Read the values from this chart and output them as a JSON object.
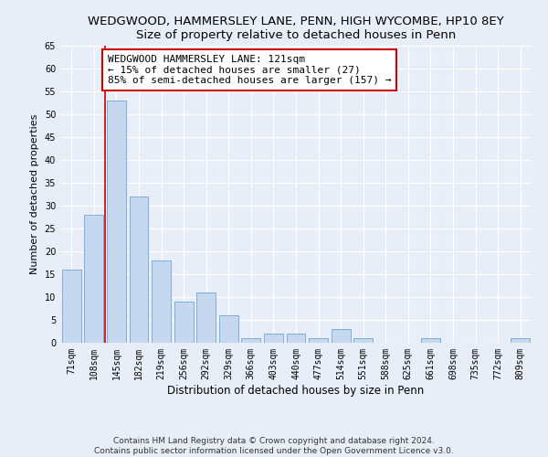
{
  "title": "WEDGWOOD, HAMMERSLEY LANE, PENN, HIGH WYCOMBE, HP10 8EY",
  "subtitle": "Size of property relative to detached houses in Penn",
  "xlabel": "Distribution of detached houses by size in Penn",
  "ylabel": "Number of detached properties",
  "categories": [
    "71sqm",
    "108sqm",
    "145sqm",
    "182sqm",
    "219sqm",
    "256sqm",
    "292sqm",
    "329sqm",
    "366sqm",
    "403sqm",
    "440sqm",
    "477sqm",
    "514sqm",
    "551sqm",
    "588sqm",
    "625sqm",
    "661sqm",
    "698sqm",
    "735sqm",
    "772sqm",
    "809sqm"
  ],
  "values": [
    16,
    28,
    53,
    32,
    18,
    9,
    11,
    6,
    1,
    2,
    2,
    1,
    3,
    1,
    0,
    0,
    1,
    0,
    0,
    0,
    1
  ],
  "bar_color": "#c5d8f0",
  "bar_edge_color": "#7bafd4",
  "ylim": [
    0,
    65
  ],
  "yticks": [
    0,
    5,
    10,
    15,
    20,
    25,
    30,
    35,
    40,
    45,
    50,
    55,
    60,
    65
  ],
  "property_line_x": 1.5,
  "annotation_text": "WEDGWOOD HAMMERSLEY LANE: 121sqm\n← 15% of detached houses are smaller (27)\n85% of semi-detached houses are larger (157) →",
  "annotation_box_color": "#ffffff",
  "annotation_box_edge": "#cc0000",
  "vline_color": "#cc0000",
  "footer_line1": "Contains HM Land Registry data © Crown copyright and database right 2024.",
  "footer_line2": "Contains public sector information licensed under the Open Government Licence v3.0.",
  "background_color": "#e8eef8",
  "plot_bg_color": "#e8eef8",
  "grid_color": "#ffffff",
  "title_fontsize": 9.5,
  "xlabel_fontsize": 8.5,
  "ylabel_fontsize": 8,
  "tick_fontsize": 7,
  "footer_fontsize": 6.5,
  "annotation_fontsize": 8
}
